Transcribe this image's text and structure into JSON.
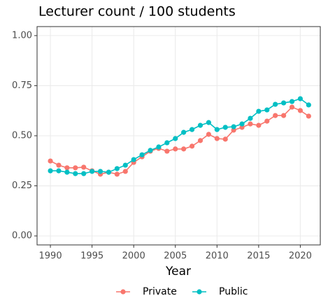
{
  "chart_data": {
    "type": "line",
    "title": "Lecturer count / 100 students",
    "x_label": "Year",
    "x": [
      1990,
      1991,
      1992,
      1993,
      1994,
      1995,
      1996,
      1997,
      1998,
      1999,
      2000,
      2001,
      2002,
      2003,
      2004,
      2005,
      2006,
      2007,
      2008,
      2009,
      2010,
      2011,
      2012,
      2013,
      2014,
      2015,
      2016,
      2017,
      2018,
      2019,
      2020,
      2021
    ],
    "series": [
      {
        "name": "Private",
        "color": "#F8766D",
        "values": [
          0.374,
          0.353,
          0.34,
          0.34,
          0.343,
          0.325,
          0.308,
          0.318,
          0.308,
          0.322,
          0.367,
          0.395,
          0.423,
          0.437,
          0.423,
          0.434,
          0.434,
          0.448,
          0.476,
          0.507,
          0.486,
          0.483,
          0.528,
          0.542,
          0.559,
          0.552,
          0.573,
          0.601,
          0.601,
          0.643,
          0.626,
          0.598
        ]
      },
      {
        "name": "Public",
        "color": "#00BFC4",
        "values": [
          0.325,
          0.325,
          0.318,
          0.311,
          0.311,
          0.322,
          0.322,
          0.318,
          0.336,
          0.353,
          0.381,
          0.405,
          0.427,
          0.444,
          0.465,
          0.486,
          0.517,
          0.531,
          0.552,
          0.566,
          0.531,
          0.542,
          0.545,
          0.559,
          0.587,
          0.622,
          0.629,
          0.657,
          0.664,
          0.671,
          0.685,
          0.654
        ]
      }
    ],
    "xlim": [
      1988.4,
      2022.4
    ],
    "xticks": [
      1990,
      1995,
      2000,
      2005,
      2010,
      2015,
      2020
    ],
    "ylim": [
      -0.045,
      1.045
    ],
    "yticks": [
      {
        "value": 0,
        "label": "0.00"
      },
      {
        "value": 0.25,
        "label": "0.25"
      },
      {
        "value": 0.5,
        "label": "0.50"
      },
      {
        "value": 0.75,
        "label": "0.75"
      },
      {
        "value": 1,
        "label": "1.00"
      }
    ],
    "grid": true,
    "legend": "bottom"
  }
}
